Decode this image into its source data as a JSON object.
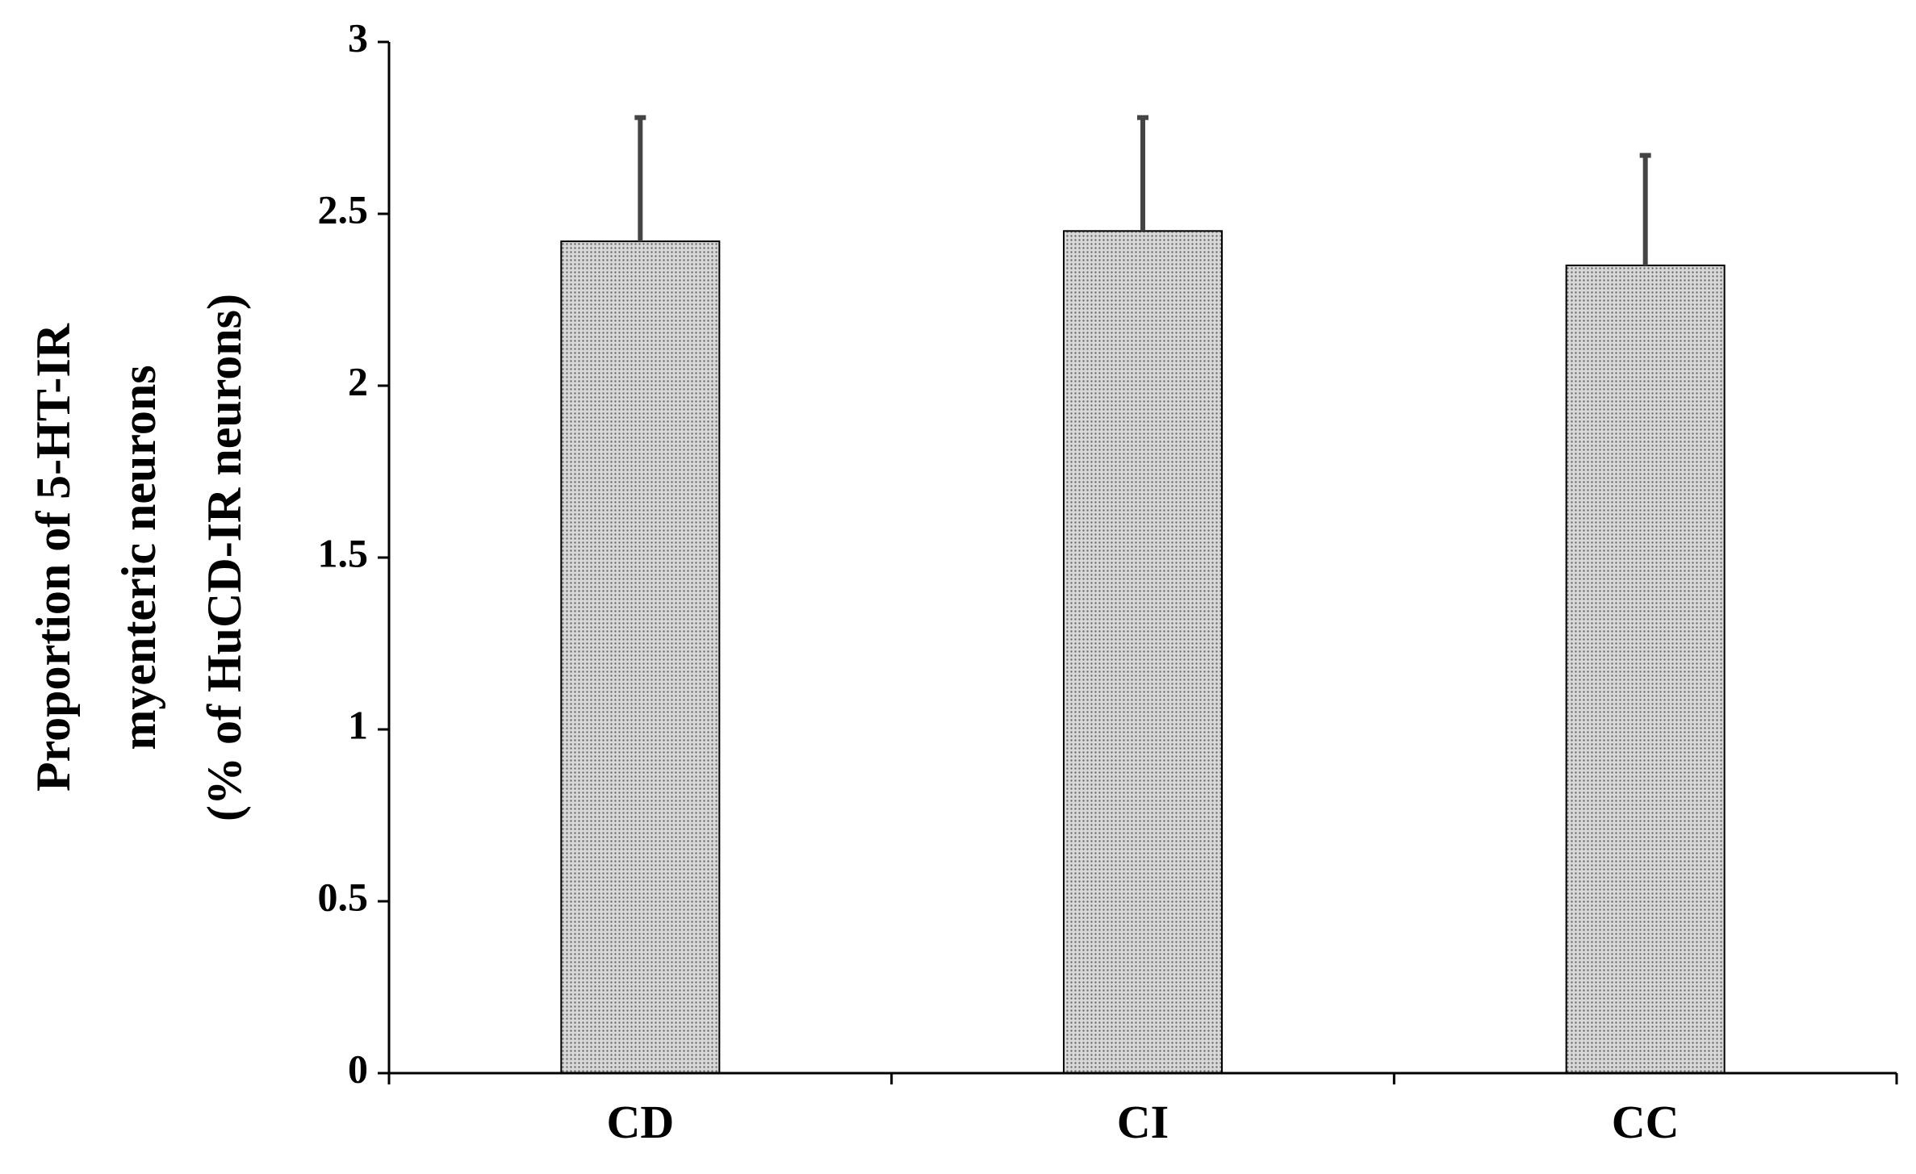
{
  "chart_data": {
    "type": "bar",
    "categories": [
      "CD",
      "CI",
      "CC"
    ],
    "values": [
      2.42,
      2.45,
      2.35
    ],
    "errors": [
      0.36,
      0.33,
      0.32
    ],
    "ylabel": [
      "Proportion of 5-HT-IR",
      "myenteric neurons",
      "(% of HuCD-IR neurons)"
    ],
    "ylim": [
      0,
      3
    ],
    "yticks": [
      "0",
      "0.5",
      "1",
      "1.5",
      "2",
      "2.5",
      "3"
    ],
    "grid": false,
    "legend": "none",
    "bar_color": "#c8c8c8",
    "bar_pattern": "dotted",
    "error_bar_color": "#444444",
    "axis_color": "#000000"
  }
}
